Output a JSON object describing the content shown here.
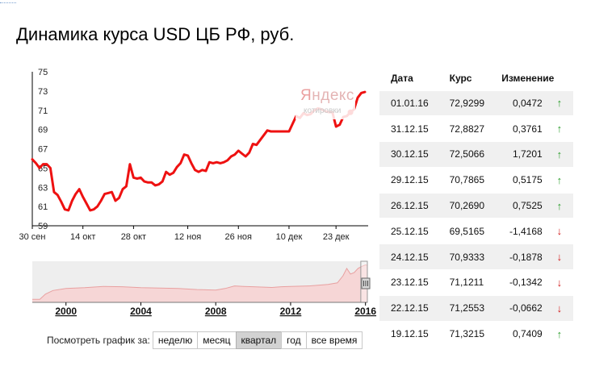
{
  "page": {
    "title": "Динамика курса USD ЦБ РФ, руб."
  },
  "watermark": {
    "brand_first": "Я",
    "brand_rest": "ндекс",
    "subtitle": "котировки"
  },
  "chart_data": {
    "type": "line",
    "title": "",
    "xlabel": "",
    "ylabel": "",
    "ylim": [
      59,
      75
    ],
    "yticks": [
      59,
      61,
      63,
      65,
      67,
      69,
      71,
      73,
      75
    ],
    "grid": false,
    "line_color": "#ee1111",
    "x_tick_labels": [
      "30 сен",
      "14 окт",
      "28 окт",
      "12 ноя",
      "26 ноя",
      "10 дек",
      "23 дек"
    ],
    "x_tick_days": [
      0,
      14,
      28,
      43,
      57,
      71,
      84
    ],
    "series": [
      {
        "x_days": [
          0,
          1,
          2,
          3,
          4,
          5,
          6,
          7,
          8,
          9,
          10,
          11,
          12,
          13,
          14,
          15,
          16,
          17,
          18,
          19,
          20,
          21,
          22,
          23,
          24,
          25,
          26,
          27,
          28,
          29,
          30,
          31,
          32,
          33,
          34,
          35,
          36,
          37,
          38,
          39,
          40,
          41,
          42,
          43,
          44,
          45,
          46,
          47,
          48,
          49,
          50,
          51,
          52,
          53,
          54,
          55,
          56,
          57,
          58,
          59,
          60,
          61,
          62,
          63,
          64,
          65,
          66,
          67,
          68,
          69,
          70,
          71,
          72,
          73,
          74,
          75,
          76,
          77,
          78,
          79,
          80,
          81,
          82,
          83,
          84,
          85,
          86,
          87,
          88,
          89,
          90,
          91,
          92
        ],
        "values": [
          65.9,
          65.5,
          65.0,
          65.4,
          65.4,
          65.0,
          62.5,
          62.2,
          61.5,
          60.7,
          60.6,
          61.6,
          62.3,
          62.8,
          62.0,
          61.3,
          60.6,
          60.7,
          61.0,
          61.6,
          62.3,
          62.4,
          62.5,
          61.6,
          61.9,
          62.8,
          63.1,
          65.4,
          64.0,
          63.9,
          64.0,
          63.6,
          63.5,
          63.5,
          63.2,
          63.3,
          63.6,
          64.6,
          64.3,
          64.5,
          65.1,
          65.5,
          66.4,
          66.3,
          65.5,
          64.8,
          64.6,
          64.8,
          64.7,
          65.6,
          65.5,
          65.6,
          65.5,
          65.6,
          65.8,
          66.2,
          66.4,
          66.8,
          66.5,
          66.2,
          66.6,
          67.5,
          67.4,
          67.9,
          68.4,
          68.9,
          68.8,
          68.8,
          68.8,
          68.8,
          68.8,
          68.8,
          69.6,
          70.4,
          70.2,
          70.7,
          70.5,
          70.6,
          71.0,
          71.2,
          71.1,
          70.9,
          70.8,
          70.8,
          69.3,
          69.5,
          70.3,
          70.4,
          70.8,
          71.1,
          72.3,
          72.8,
          72.9
        ]
      }
    ],
    "highlighted_point": {
      "x_day": 88,
      "value": 70.79
    }
  },
  "navigator": {
    "year_labels": [
      "2000",
      "2004",
      "2008",
      "2012",
      "2016"
    ],
    "year_values": [
      2000,
      2004,
      2008,
      2012,
      2016
    ],
    "x_range": [
      1998.2,
      2016.1
    ],
    "ylim": [
      0,
      80
    ],
    "points": [
      [
        1998.2,
        6
      ],
      [
        1998.6,
        6
      ],
      [
        1998.9,
        16
      ],
      [
        1999.3,
        23
      ],
      [
        2000,
        27
      ],
      [
        2001,
        28.5
      ],
      [
        2002,
        31
      ],
      [
        2003,
        30.5
      ],
      [
        2004,
        28.5
      ],
      [
        2005,
        28
      ],
      [
        2006,
        27
      ],
      [
        2007,
        25
      ],
      [
        2008,
        24
      ],
      [
        2008.5,
        27
      ],
      [
        2009,
        32
      ],
      [
        2009.5,
        31
      ],
      [
        2010,
        30.5
      ],
      [
        2011,
        29
      ],
      [
        2011.5,
        30.5
      ],
      [
        2012,
        31
      ],
      [
        2013,
        32
      ],
      [
        2014,
        35
      ],
      [
        2014.5,
        38
      ],
      [
        2014.8,
        52
      ],
      [
        2015,
        66
      ],
      [
        2015.2,
        55
      ],
      [
        2015.4,
        58
      ],
      [
        2015.6,
        66
      ],
      [
        2015.8,
        70
      ],
      [
        2016,
        73
      ],
      [
        2016.1,
        72
      ]
    ],
    "window_start": 2015.75,
    "handle_icon": "drag-handle-icon"
  },
  "period_selector": {
    "label": "Посмотреть график за:",
    "options": [
      "неделю",
      "месяц",
      "квартал",
      "год",
      "все время"
    ],
    "active": "квартал"
  },
  "table": {
    "headers": {
      "date": "Дата",
      "rate": "Курс",
      "change": "Изменение"
    },
    "rows": [
      {
        "date": "01.01.16",
        "rate": "72,9299",
        "change": "0,0472",
        "direction": "up",
        "arrow": "↑"
      },
      {
        "date": "31.12.15",
        "rate": "72,8827",
        "change": "0,3761",
        "direction": "up",
        "arrow": "↑"
      },
      {
        "date": "30.12.15",
        "rate": "72,5066",
        "change": "1,7201",
        "direction": "up",
        "arrow": "↑"
      },
      {
        "date": "29.12.15",
        "rate": "70,7865",
        "change": "0,5175",
        "direction": "up",
        "arrow": "↑"
      },
      {
        "date": "26.12.15",
        "rate": "70,2690",
        "change": "0,7525",
        "direction": "up",
        "arrow": "↑"
      },
      {
        "date": "25.12.15",
        "rate": "69,5165",
        "change": "-1,4168",
        "direction": "down",
        "arrow": "↓"
      },
      {
        "date": "24.12.15",
        "rate": "70,9333",
        "change": "-0,1878",
        "direction": "down",
        "arrow": "↓"
      },
      {
        "date": "23.12.15",
        "rate": "71,1211",
        "change": "-0,1342",
        "direction": "down",
        "arrow": "↓"
      },
      {
        "date": "22.12.15",
        "rate": "71,2553",
        "change": "-0,0662",
        "direction": "down",
        "arrow": "↓"
      },
      {
        "date": "19.12.15",
        "rate": "71,3215",
        "change": "0,7409",
        "direction": "up",
        "arrow": "↑"
      }
    ],
    "colors": {
      "up": "#2a9d2a",
      "down": "#d21c1c"
    }
  }
}
